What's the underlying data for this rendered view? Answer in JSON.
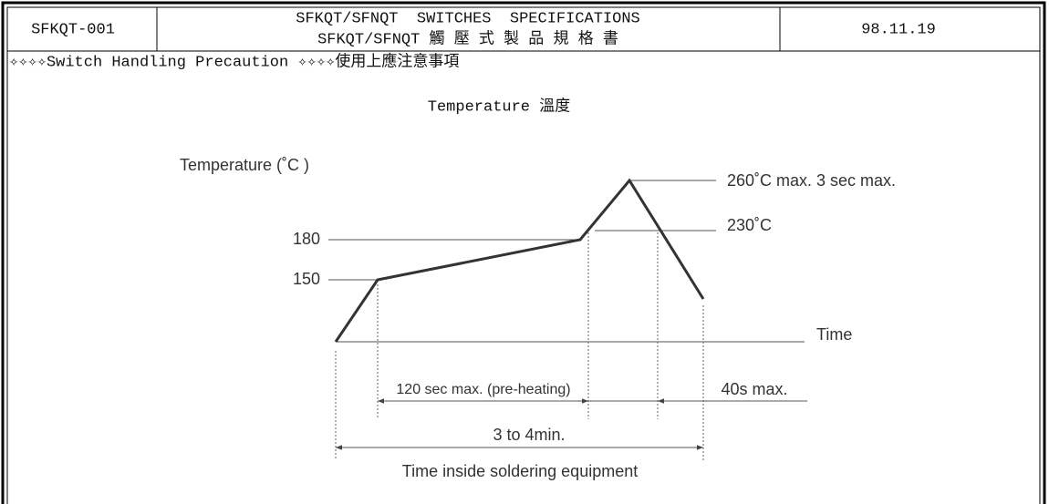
{
  "header": {
    "doc_id": "SFKQT-001",
    "title_en": "SFKQT/SFNQT  SWITCHES  SPECIFICATIONS",
    "title_zh": "SFKQT/SFNQT 觸 壓 式 製 品 規 格 書",
    "date": "98.11.19"
  },
  "precaution": "✧✧✧✧Switch Handling Precaution ✧✧✧✧使用上應注意事項",
  "section_title": "Temperature 溫度",
  "diagram": {
    "y_axis_label": "Temperature (˚C )",
    "x_axis_label": "Time",
    "levels": [
      "180",
      "150"
    ],
    "annotations": [
      "260˚C max. 3 sec max.",
      "230˚C"
    ],
    "intervals": [
      "120 sec max. (pre-heating)",
      "40s max.",
      "3 to 4min."
    ],
    "caption": "Time inside soldering equipment"
  }
}
